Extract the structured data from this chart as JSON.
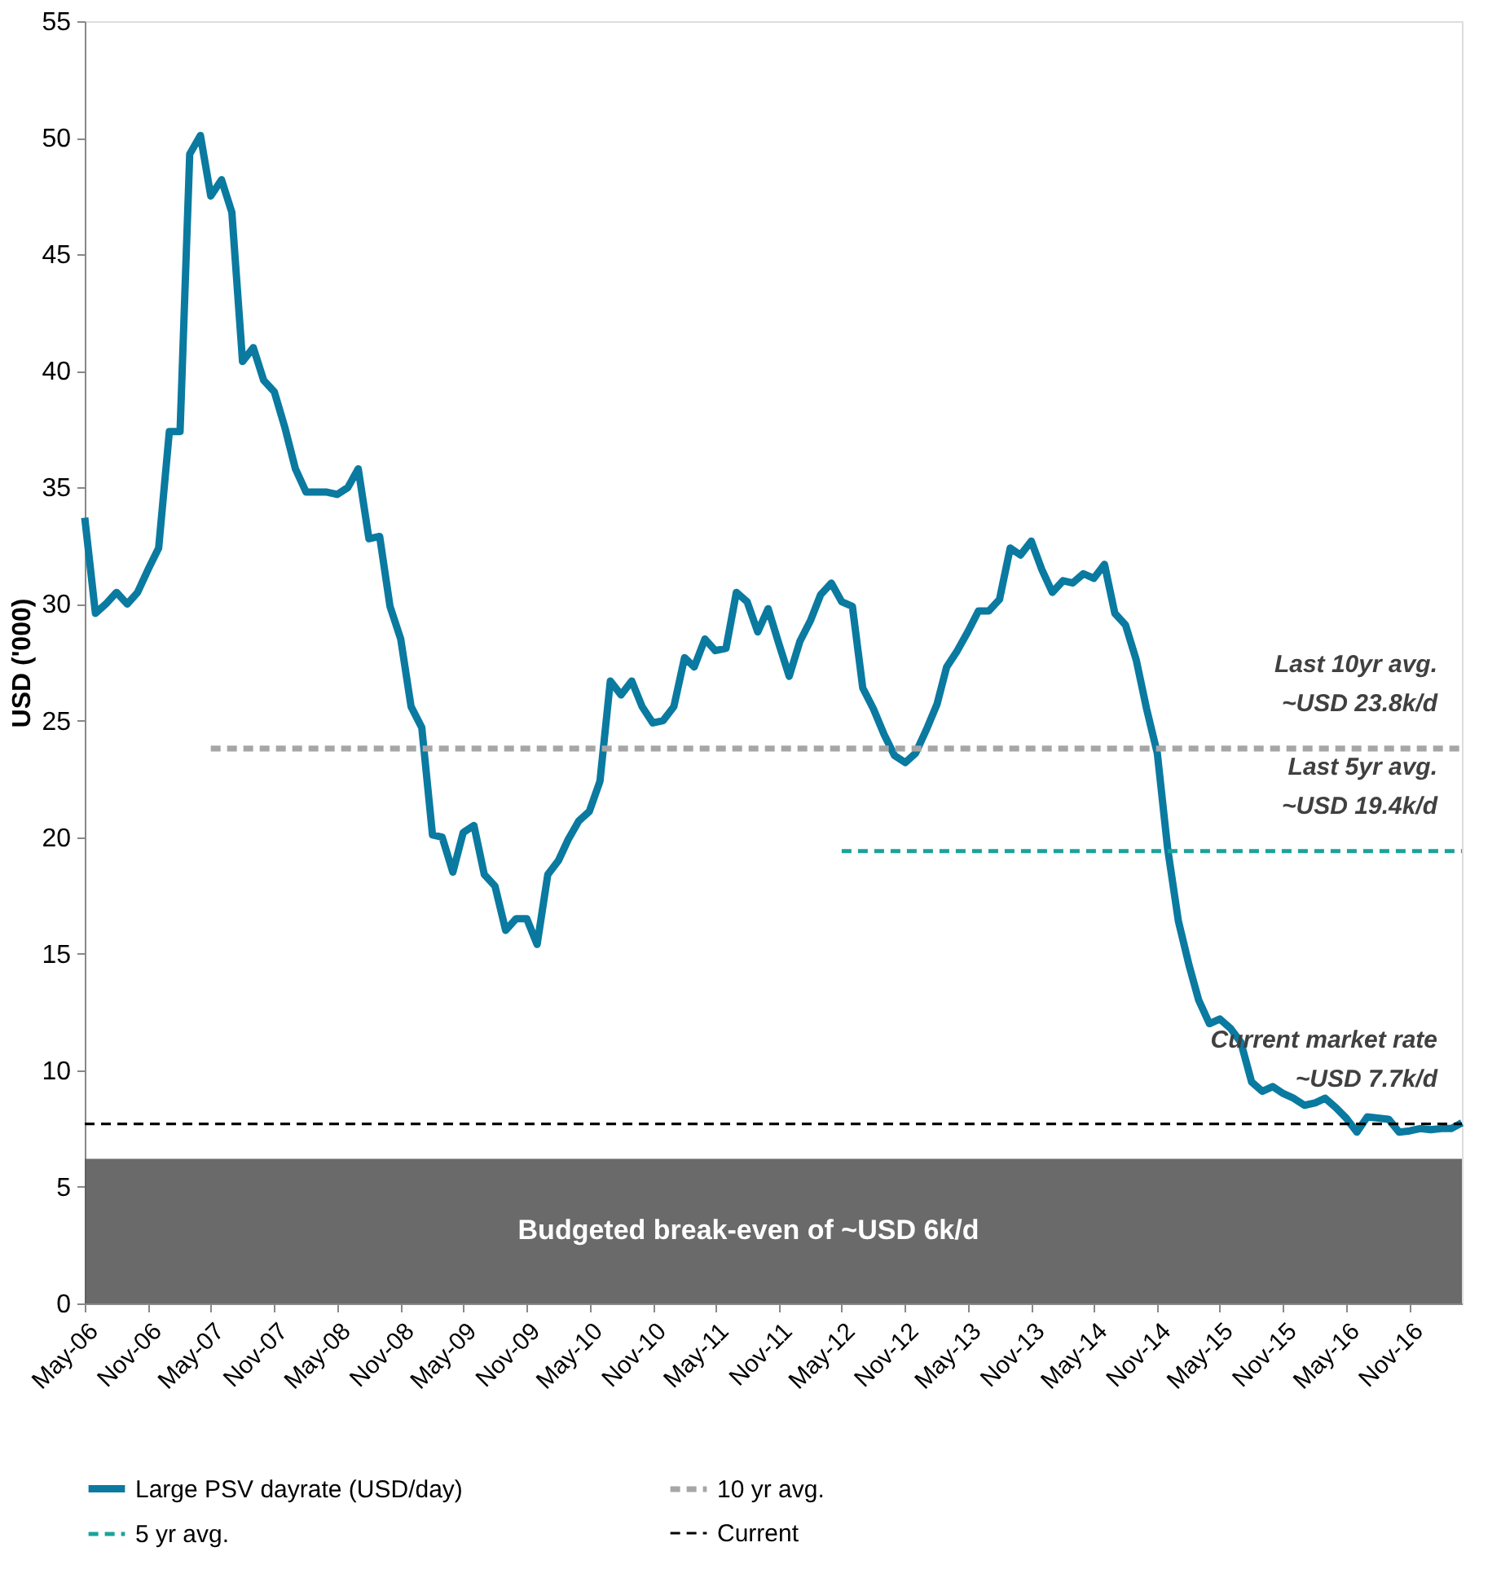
{
  "chart_data": {
    "type": "line",
    "ylabel": "USD ('000)",
    "xlim": [
      "2006-05",
      "2017-04"
    ],
    "ylim": [
      0,
      55
    ],
    "yticks": [
      0,
      5,
      10,
      15,
      20,
      25,
      30,
      35,
      40,
      45,
      50,
      55
    ],
    "xticks": [
      {
        "value": "2006-05",
        "label": "May-06"
      },
      {
        "value": "2006-11",
        "label": "Nov-06"
      },
      {
        "value": "2007-05",
        "label": "May-07"
      },
      {
        "value": "2007-11",
        "label": "Nov-07"
      },
      {
        "value": "2008-05",
        "label": "May-08"
      },
      {
        "value": "2008-11",
        "label": "Nov-08"
      },
      {
        "value": "2009-05",
        "label": "May-09"
      },
      {
        "value": "2009-11",
        "label": "Nov-09"
      },
      {
        "value": "2010-05",
        "label": "May-10"
      },
      {
        "value": "2010-11",
        "label": "Nov-10"
      },
      {
        "value": "2011-05",
        "label": "May-11"
      },
      {
        "value": "2011-11",
        "label": "Nov-11"
      },
      {
        "value": "2012-05",
        "label": "May-12"
      },
      {
        "value": "2012-11",
        "label": "Nov-12"
      },
      {
        "value": "2013-05",
        "label": "May-13"
      },
      {
        "value": "2013-11",
        "label": "Nov-13"
      },
      {
        "value": "2014-05",
        "label": "May-14"
      },
      {
        "value": "2014-11",
        "label": "Nov-14"
      },
      {
        "value": "2015-05",
        "label": "May-15"
      },
      {
        "value": "2015-11",
        "label": "Nov-15"
      },
      {
        "value": "2016-05",
        "label": "May-16"
      },
      {
        "value": "2016-11",
        "label": "Nov-16"
      }
    ],
    "grid": false,
    "legend": "bottom",
    "marker": "none",
    "x": [
      "2006-05",
      "2006-06",
      "2006-07",
      "2006-08",
      "2006-09",
      "2006-10",
      "2006-11",
      "2006-12",
      "2007-01",
      "2007-02",
      "2007-03",
      "2007-04",
      "2007-05",
      "2007-06",
      "2007-07",
      "2007-08",
      "2007-09",
      "2007-10",
      "2007-11",
      "2007-12",
      "2008-01",
      "2008-02",
      "2008-03",
      "2008-04",
      "2008-05",
      "2008-06",
      "2008-07",
      "2008-08",
      "2008-09",
      "2008-10",
      "2008-11",
      "2008-12",
      "2009-01",
      "2009-02",
      "2009-03",
      "2009-04",
      "2009-05",
      "2009-06",
      "2009-07",
      "2009-08",
      "2009-09",
      "2009-10",
      "2009-11",
      "2009-12",
      "2010-01",
      "2010-02",
      "2010-03",
      "2010-04",
      "2010-05",
      "2010-06",
      "2010-07",
      "2010-08",
      "2010-09",
      "2010-10",
      "2010-11",
      "2010-12",
      "2011-01",
      "2011-02",
      "2011-03",
      "2011-04",
      "2011-05",
      "2011-06",
      "2011-07",
      "2011-08",
      "2011-09",
      "2011-10",
      "2011-11",
      "2011-12",
      "2012-01",
      "2012-02",
      "2012-03",
      "2012-04",
      "2012-05",
      "2012-06",
      "2012-07",
      "2012-08",
      "2012-09",
      "2012-10",
      "2012-11",
      "2012-12",
      "2013-01",
      "2013-02",
      "2013-03",
      "2013-04",
      "2013-05",
      "2013-06",
      "2013-07",
      "2013-08",
      "2013-09",
      "2013-10",
      "2013-11",
      "2013-12",
      "2014-01",
      "2014-02",
      "2014-03",
      "2014-04",
      "2014-05",
      "2014-06",
      "2014-07",
      "2014-08",
      "2014-09",
      "2014-10",
      "2014-11",
      "2014-12",
      "2015-01",
      "2015-02",
      "2015-03",
      "2015-04",
      "2015-05",
      "2015-06",
      "2015-07",
      "2015-08",
      "2015-09",
      "2015-10",
      "2015-11",
      "2015-12",
      "2016-01",
      "2016-02",
      "2016-03",
      "2016-04",
      "2016-05",
      "2016-06",
      "2016-07",
      "2016-08",
      "2016-09",
      "2016-10",
      "2016-11",
      "2016-12",
      "2017-01",
      "2017-02",
      "2017-03",
      "2017-04"
    ],
    "series": [
      {
        "name": "Large PSV dayrate (USD/day)",
        "color": "#0a7aa0",
        "line_style": "solid",
        "values": [
          33.7,
          29.6,
          30.0,
          30.5,
          30.0,
          30.5,
          31.5,
          32.4,
          37.4,
          37.4,
          49.3,
          50.1,
          47.5,
          48.2,
          46.8,
          40.4,
          41.0,
          39.6,
          39.1,
          37.6,
          35.8,
          34.8,
          34.8,
          34.8,
          34.7,
          35.0,
          35.8,
          32.8,
          32.9,
          29.9,
          28.5,
          25.6,
          24.7,
          20.1,
          20.0,
          18.5,
          20.2,
          20.5,
          18.4,
          17.9,
          16.0,
          16.5,
          16.5,
          15.4,
          18.4,
          19.0,
          19.9,
          20.7,
          21.1,
          22.4,
          26.7,
          26.1,
          26.7,
          25.6,
          24.9,
          25.0,
          25.6,
          27.7,
          27.3,
          28.5,
          28.0,
          28.1,
          30.5,
          30.1,
          28.8,
          29.8,
          28.3,
          26.9,
          28.4,
          29.3,
          30.4,
          30.9,
          30.1,
          29.9,
          26.4,
          25.5,
          24.4,
          23.5,
          23.2,
          23.6,
          24.6,
          25.7,
          27.3,
          28.0,
          28.8,
          29.7,
          29.7,
          30.2,
          32.4,
          32.1,
          32.7,
          31.5,
          30.5,
          31.0,
          30.9,
          31.3,
          31.1,
          31.7,
          29.6,
          29.1,
          27.6,
          25.5,
          23.6,
          19.5,
          16.4,
          14.5,
          13.0,
          12.0,
          12.2,
          11.8,
          11.2,
          9.5,
          9.1,
          9.3,
          9.0,
          8.8,
          8.5,
          8.6,
          8.8,
          8.4,
          7.95,
          7.35,
          8.0,
          7.95,
          7.9,
          7.35,
          7.4,
          7.5,
          7.45,
          7.5,
          7.5,
          7.75
        ]
      },
      {
        "name": "10 yr avg.",
        "color": "#a6a6a6",
        "line_style": "dashed",
        "x": [
          "2007-05",
          "2017-04"
        ],
        "values": [
          23.8,
          23.8
        ]
      },
      {
        "name": "5 yr avg.",
        "color": "#1aa39a",
        "line_style": "dashed",
        "x": [
          "2012-05",
          "2017-04"
        ],
        "values": [
          19.4,
          19.4
        ]
      },
      {
        "name": "Current",
        "color": "#000000",
        "line_style": "dashed",
        "x": [
          "2006-05",
          "2017-04"
        ],
        "values": [
          7.7,
          7.7
        ]
      }
    ],
    "bands": [
      {
        "axis": "y",
        "from": 0,
        "to": 6.2,
        "label": "Budgeted break-even of ~USD 6k/d",
        "color": "#5a5a5a"
      }
    ],
    "annotations": [
      "Last 10yr avg.\n~USD 23.8k/d",
      "Last 5yr avg.\n~USD 19.4k/d",
      "Current market rate\n~USD 7.7k/d"
    ]
  }
}
